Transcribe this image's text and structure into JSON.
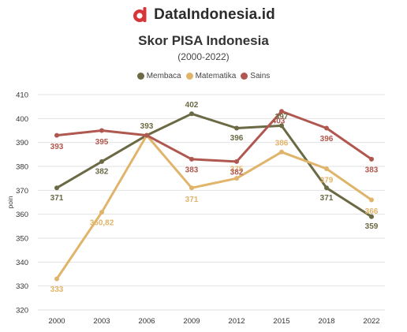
{
  "brand": {
    "name": "DataIndonesia.id",
    "logo_icon": "data-indonesia-logo-icon",
    "logo_color": "#d6353a"
  },
  "chart_data": {
    "type": "line",
    "title": "Skor PISA Indonesia",
    "subtitle": "(2000-2022)",
    "ylabel": "poin",
    "xlabel": "",
    "categories": [
      "2000",
      "2003",
      "2006",
      "2009",
      "2012",
      "2015",
      "2018",
      "2022"
    ],
    "ylim": [
      320,
      410
    ],
    "yticks": [
      320,
      330,
      340,
      350,
      360,
      370,
      380,
      390,
      400,
      410
    ],
    "grid": true,
    "legend_position": "top-center",
    "series": [
      {
        "name": "Membaca",
        "color": "#6b6a45",
        "values": [
          371,
          382,
          393,
          402,
          396,
          397,
          371,
          359
        ],
        "labels": [
          "371",
          "382",
          "393",
          "402",
          "396",
          "397",
          "371",
          "359"
        ]
      },
      {
        "name": "Matematika",
        "color": "#e0b46a",
        "values": [
          333,
          360.82,
          393,
          371,
          375,
          386,
          379,
          366
        ],
        "labels": [
          "333",
          "360,82",
          "",
          "371",
          "375",
          "386",
          "379",
          "366"
        ]
      },
      {
        "name": "Sains",
        "color": "#b0584f",
        "values": [
          393,
          395,
          393,
          383,
          382,
          403,
          396,
          383
        ],
        "labels": [
          "393",
          "395",
          "",
          "383",
          "382",
          "403",
          "396",
          "383"
        ]
      }
    ]
  }
}
